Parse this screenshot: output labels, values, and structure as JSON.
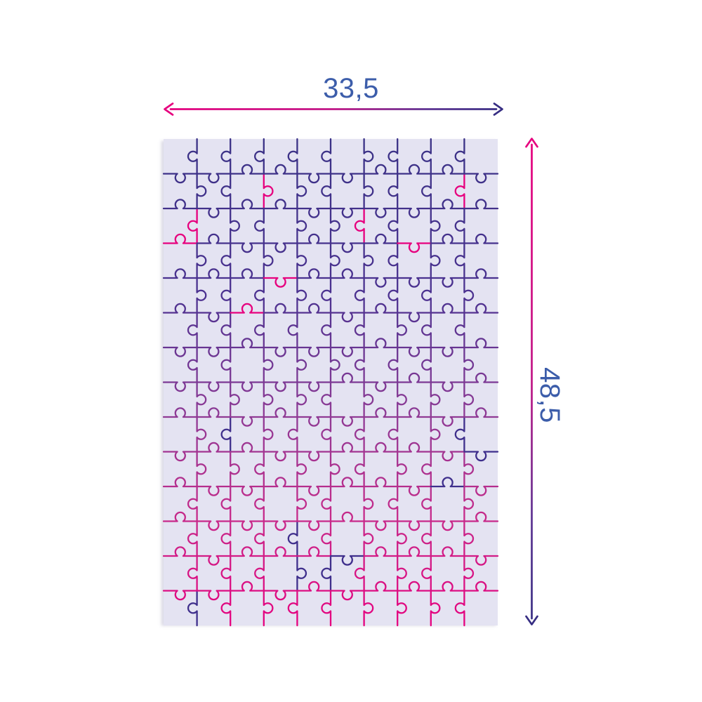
{
  "diagram": {
    "width_label": "33,5",
    "height_label": "48,5"
  },
  "puzzle": {
    "columns": 10,
    "rows": 14,
    "background_color": "#e4e3f2",
    "outline_gradient": [
      "#3a3186",
      "#4b3190",
      "#8c3a95",
      "#c7298a",
      "#e6007e"
    ],
    "noise_pink": "#e6007e",
    "noise_purple": "#3f2f8c",
    "seed": 12
  },
  "arrow_gradient": [
    "#e6007e",
    "#c01586",
    "#5c3292",
    "#372e83"
  ],
  "colors": {
    "label_text": "#3c5daa",
    "arrow_pink": "#e6007e",
    "arrow_purple": "#372e83",
    "shadow": "#c9c8d8",
    "page_background": "#ffffff"
  }
}
